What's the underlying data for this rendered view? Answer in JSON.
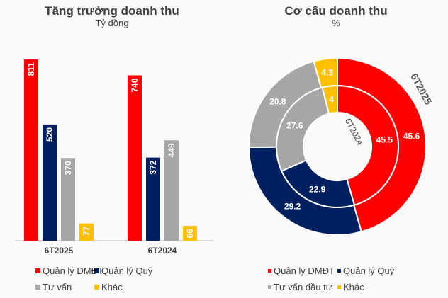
{
  "chart_data": [
    {
      "type": "bar",
      "title": "Tăng trưởng doanh thu",
      "subtitle": "Tỷ đồng",
      "categories": [
        "6T2025",
        "6T2024"
      ],
      "series": [
        {
          "name": "Quản lý DMĐT",
          "color": "#ff0000",
          "values": [
            811,
            740
          ]
        },
        {
          "name": "Quản lý Quỹ",
          "color": "#002060",
          "values": [
            520,
            372
          ]
        },
        {
          "name": "Tư vấn",
          "color": "#a6a6a6",
          "values": [
            370,
            449
          ]
        },
        {
          "name": "Khác",
          "color": "#ffc000",
          "values": [
            77,
            66
          ]
        }
      ],
      "ylim": [
        0,
        900
      ],
      "grid": false,
      "legend": "bottom"
    },
    {
      "type": "pie",
      "title": "Cơ cấu doanh thu",
      "subtitle": "%",
      "rings": [
        {
          "name": "6T2025",
          "values": [
            45.6,
            29.2,
            20.8,
            4.3
          ]
        },
        {
          "name": "6T2024",
          "values": [
            45.5,
            22.9,
            27.6,
            4
          ]
        }
      ],
      "labels": [
        "Quản lý DMĐT",
        "Quản lý Quỹ",
        "Tư vấn đầu tư",
        "Khác"
      ],
      "colors": [
        "#ff0000",
        "#002060",
        "#a6a6a6",
        "#ffc000"
      ],
      "legend": "bottom"
    }
  ]
}
